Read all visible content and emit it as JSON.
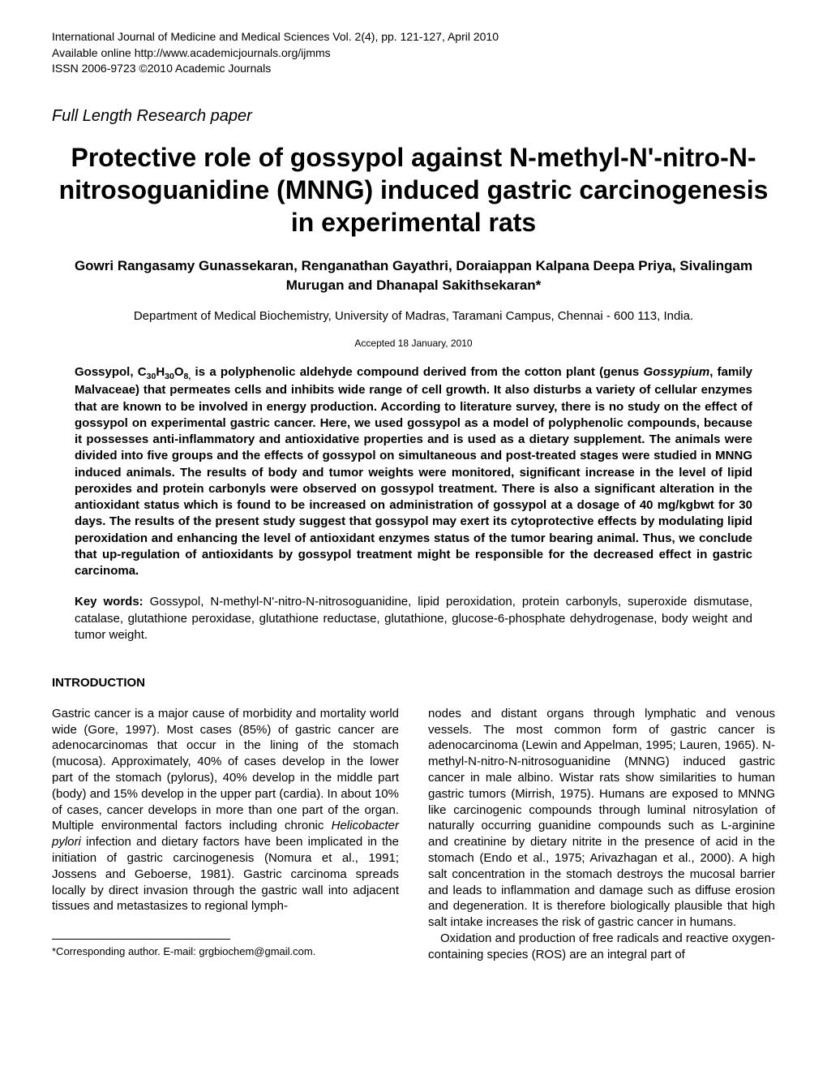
{
  "header": {
    "line1": "International Journal of Medicine and Medical Sciences Vol. 2(4), pp. 121-127, April 2010",
    "line2": "Available online http://www.academicjournals.org/ijmms",
    "line3": "ISSN 2006-9723 ©2010 Academic Journals"
  },
  "paper_type": "Full Length Research paper",
  "title": "Protective role of gossypol against N-methyl-N'-nitro-N-nitrosoguanidine (MNNG) induced gastric carcinogenesis in experimental rats",
  "authors": "Gowri Rangasamy Gunassekaran, Renganathan Gayathri, Doraiappan Kalpana Deepa Priya, Sivalingam Murugan and Dhanapal Sakithsekaran*",
  "affiliation": "Department of Medical Biochemistry, University of Madras, Taramani Campus, Chennai - 600 113, India.",
  "accepted": "Accepted 18 January, 2010",
  "abstract_pre": "Gossypol, C",
  "abstract_sub": "30",
  "abstract_mid1": "H",
  "abstract_sub2": "30",
  "abstract_mid2": "O",
  "abstract_sub3": "8,",
  "abstract_post": " is a polyphenolic aldehyde compound derived from the cotton plant (genus ",
  "abstract_genus": "Gossypium",
  "abstract_rest": ", family Malvaceae) that permeates cells and inhibits wide range of cell growth. It also disturbs a variety of cellular enzymes that are known to be involved in energy production. According to literature survey, there is no study on the effect of gossypol on experimental gastric cancer. Here, we used gossypol as a model of polyphenolic compounds, because it possesses anti-inflammatory and antioxidative properties and is used as a dietary supplement. The animals were divided into five groups and the effects of gossypol on simultaneous and post-treated stages were studied in MNNG induced animals. The results of body and tumor weights were monitored, significant increase in the level of lipid peroxides and protein carbonyls were observed on gossypol treatment. There is also a significant alteration in the antioxidant status which is found to be increased on administration of gossypol at a dosage of 40 mg/kgbwt for 30 days. The results of the present study suggest that gossypol may exert its cytoprotective effects by modulating lipid peroxidation and enhancing the level of antioxidant enzymes status of the tumor bearing animal. Thus, we conclude that up-regulation of antioxidants by gossypol treatment might be responsible for the decreased effect in gastric carcinoma.",
  "keywords_label": "Key words:",
  "keywords_text": " Gossypol, N-methyl-N'-nitro-N-nitrosoguanidine, lipid peroxidation, protein carbonyls, superoxide dismutase, catalase, glutathione peroxidase, glutathione reductase, glutathione, glucose-6-phosphate dehydrogenase, body weight and tumor weight.",
  "section_heading": "INTRODUCTION",
  "col1_p1a": "Gastric cancer is a major cause of morbidity and mortality world wide (Gore, 1997). Most cases (85%) of gastric cancer are adenocarcinomas that occur in the lining of the stomach (mucosa). Approximately, 40% of cases develop in the lower part of the stomach (pylorus), 40% develop in the middle part (body) and 15% develop in the upper part (cardia). In about 10% of cases, cancer develops in more than one part of the organ. Multiple environmental factors including chronic ",
  "col1_italic": "Helicobacter pylori",
  "col1_p1b": " infection and dietary factors have been implicated in the initiation of gastric carcinogenesis (Nomura et al., 1991; Jossens and Geboerse, 1981). Gastric carcinoma spreads locally by direct invasion through the gastric wall into adjacent tissues and metastasizes to regional lymph-",
  "footnote": "*Corresponding author. E-mail: grgbiochem@gmail.com.",
  "col2_p1": "nodes and distant organs through lymphatic and venous vessels. The most common form of gastric cancer is adenocarcinoma (Lewin and Appelman, 1995; Lauren, 1965). N-methyl-N-nitro-N-nitrosoguanidine (MNNG) induced gastric cancer in male albino. Wistar rats show similarities to human gastric tumors (Mirrish, 1975). Humans are exposed to MNNG like carcinogenic compounds through luminal nitrosylation of naturally occurring guanidine compounds such as L-arginine and creatinine by dietary nitrite in the presence of acid in the stomach (Endo et al., 1975; Arivazhagan et al., 2000). A high salt concentration in the stomach destroys the mucosal barrier and leads to inflammation and damage such as diffuse erosion and degeneration. It is therefore biologically plausible that high salt intake increases the risk of gastric cancer in humans.",
  "col2_p2": "Oxidation and production of free radicals and reactive oxygen-containing species (ROS) are an  integral  part  of"
}
